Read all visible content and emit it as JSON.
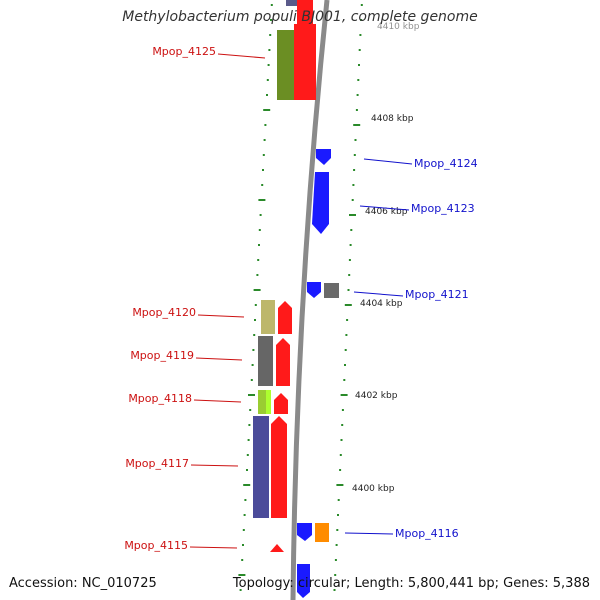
{
  "header": {
    "title": "Methylobacterium populi BJ001, complete genome"
  },
  "footer": {
    "accession": "Accession: NC_010725",
    "summary": "Topology: circular; Length: 5,800,441 bp; Genes: 5,388"
  },
  "colors": {
    "backbone": "#8a8a8a",
    "ruler": "#2a8a2a",
    "left_label": "#cc1111",
    "right_label": "#1111cc",
    "fwd_cds": "#ff1a1a",
    "rev_cds": "#1a1aff"
  },
  "ruler": {
    "ticks": [
      "4400 kbp",
      "4402 kbp",
      "4404 kbp",
      "4406 kbp",
      "4408 kbp",
      "4410 kbp"
    ]
  },
  "genes_left": [
    {
      "name": "Mpop_4125"
    },
    {
      "name": "Mpop_4120"
    },
    {
      "name": "Mpop_4119"
    },
    {
      "name": "Mpop_4118"
    },
    {
      "name": "Mpop_4117"
    },
    {
      "name": "Mpop_4115"
    }
  ],
  "genes_right": [
    {
      "name": "Mpop_4124"
    },
    {
      "name": "Mpop_4123"
    },
    {
      "name": "Mpop_4121"
    },
    {
      "name": "Mpop_4116"
    }
  ]
}
